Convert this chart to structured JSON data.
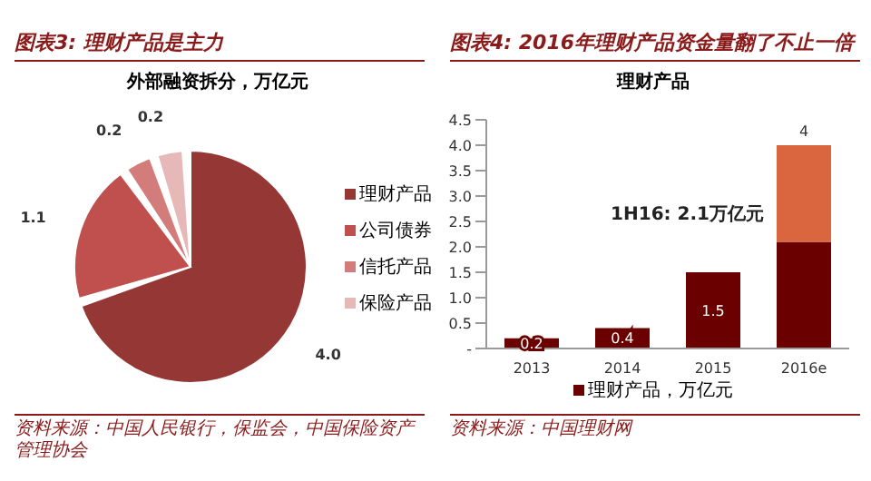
{
  "chart_data": [
    {
      "type": "pie",
      "title": "图表3: 理财产品是主力",
      "subtitle": "外部融资拆分，万亿元",
      "categories": [
        "理财产品",
        "公司债券",
        "信托产品",
        "保险产品"
      ],
      "values": [
        4.0,
        1.1,
        0.2,
        0.2
      ],
      "value_labels": [
        "4.0",
        "1.1",
        "0.2",
        "0.2"
      ],
      "colors": [
        "#953735",
        "#c0504d",
        "#d27d7b",
        "#e6b9b8"
      ],
      "legend": "right",
      "annotations": [
        "资料来源：中国人民银行，保监会，中国保险资产管理协会"
      ]
    },
    {
      "type": "bar",
      "title": "图表4: 2016年理财产品资金量翻了不止一倍",
      "subtitle": "理财产品",
      "categories": [
        "2013",
        "2014",
        "2015",
        "2016e"
      ],
      "stacked": true,
      "series": [
        {
          "name": "理财产品，万亿元",
          "color": "#6b0000",
          "values": [
            0.2,
            0.4,
            1.5,
            2.1
          ],
          "value_labels": [
            "0.2",
            "0.4",
            "1.5",
            null
          ]
        },
        {
          "color": "#d9663f",
          "values": [
            null,
            null,
            null,
            1.9
          ]
        }
      ],
      "totals": [
        null,
        null,
        null,
        "4"
      ],
      "ylim": [
        0,
        4.5
      ],
      "yticks": [
        {
          "value": 0,
          "label": "-"
        },
        0.5,
        {
          "value": 1,
          "label": "1.0"
        },
        1.5,
        {
          "value": 2,
          "label": "2.0"
        },
        2.5,
        {
          "value": 3,
          "label": "3.0"
        },
        3.5,
        {
          "value": 4,
          "label": "4.0"
        },
        4.5
      ],
      "legend": "bottom",
      "annotations": [
        {
          "text": "1H16: 2.1万亿元",
          "x": "2016e",
          "y": 2.1
        },
        "资料来源：中国理财网"
      ]
    }
  ]
}
